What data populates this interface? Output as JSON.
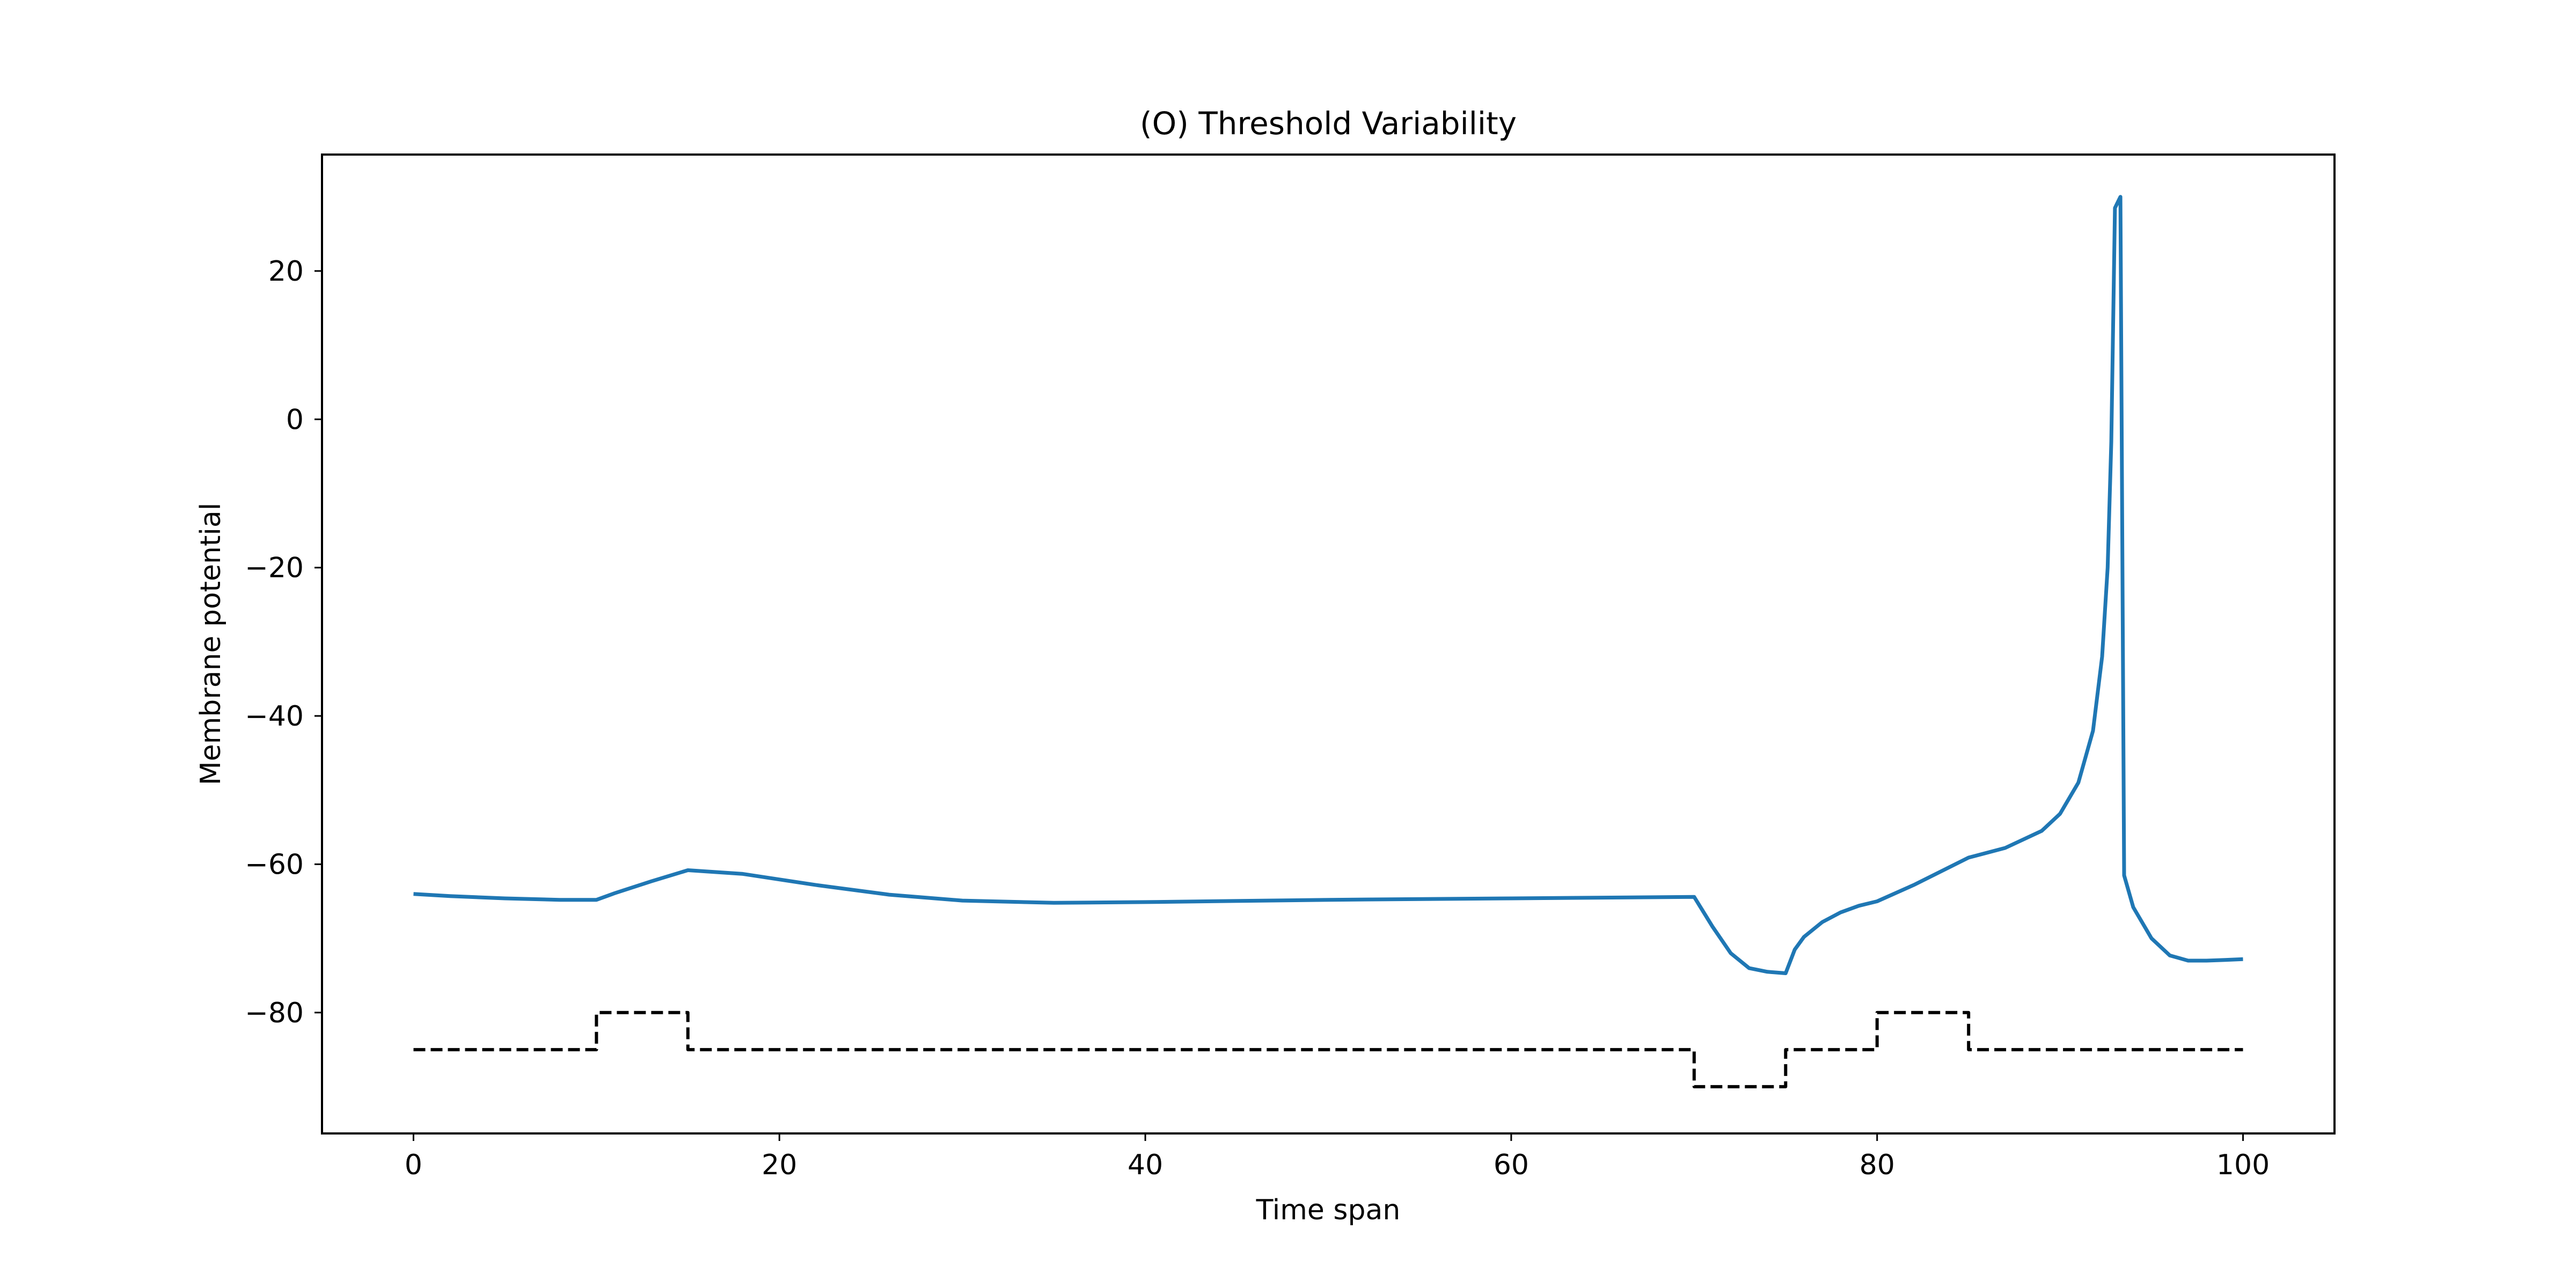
{
  "chart_data": {
    "type": "line",
    "title": "(O) Threshold Variability",
    "xlabel": "Time span",
    "ylabel": "Membrane potential",
    "xlim": [
      -5,
      105
    ],
    "ylim": [
      -96.3,
      35.7
    ],
    "x_ticks": [
      0,
      20,
      40,
      60,
      80,
      100
    ],
    "x_tick_labels": [
      "0",
      "20",
      "40",
      "60",
      "80",
      "100"
    ],
    "y_ticks": [
      -80,
      -60,
      -40,
      -20,
      0,
      20
    ],
    "y_tick_labels": [
      "−80",
      "−60",
      "−40",
      "−20",
      "0",
      "20"
    ],
    "grid": false,
    "legend": false,
    "series": [
      {
        "style": "solid",
        "color": "#1f77b4",
        "x": [
          0,
          2,
          5,
          8,
          10,
          11,
          13,
          15,
          18,
          22,
          26,
          30,
          35,
          40,
          50,
          60,
          65,
          70,
          71,
          72,
          73,
          74,
          75,
          75.5,
          76,
          77,
          78,
          79,
          80,
          82,
          85,
          87,
          89,
          90,
          91,
          91.8,
          92.3,
          92.6,
          92.8,
          93.0,
          93.1,
          93.3,
          93.5,
          94,
          95,
          96,
          97,
          98,
          99,
          100
        ],
        "y": [
          -64.0,
          -64.3,
          -64.6,
          -64.8,
          -64.8,
          -63.9,
          -62.3,
          -60.8,
          -61.3,
          -62.8,
          -64.1,
          -64.9,
          -65.2,
          -65.1,
          -64.8,
          -64.6,
          -64.5,
          -64.4,
          -68.4,
          -72.0,
          -74.0,
          -74.5,
          -74.7,
          -71.5,
          -69.8,
          -67.8,
          -66.5,
          -65.6,
          -65.0,
          -62.8,
          -59.1,
          -57.8,
          -55.5,
          -53.2,
          -49.0,
          -42.0,
          -32.0,
          -20.0,
          -3.0,
          28.5,
          29.0,
          30.0,
          -61.5,
          -65.8,
          -70.0,
          -72.3,
          -73.0,
          -73.0,
          -72.9,
          -72.8
        ]
      },
      {
        "style": "dashed",
        "color": "#000000",
        "x": [
          0,
          10,
          10,
          15,
          15,
          70,
          70,
          75,
          75,
          80,
          80,
          85,
          85,
          100
        ],
        "y": [
          -85,
          -85,
          -80,
          -80,
          -85,
          -85,
          -90,
          -90,
          -85,
          -85,
          -80,
          -80,
          -85,
          -85
        ]
      }
    ]
  }
}
